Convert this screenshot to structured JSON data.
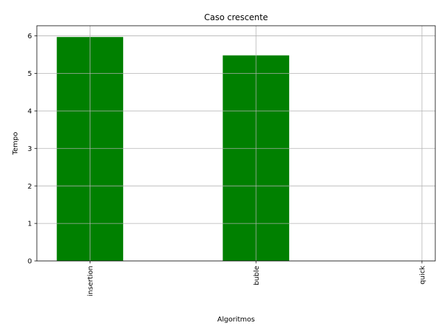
{
  "chart_data": {
    "type": "bar",
    "title": "Caso crescente",
    "xlabel": "Algoritmos",
    "ylabel": "Tempo",
    "categories": [
      "insertion",
      "buble",
      "quick"
    ],
    "values": [
      5.97,
      5.48,
      0.0
    ],
    "ylim": [
      0,
      6.27
    ],
    "yticks": [
      0,
      1,
      2,
      3,
      4,
      5,
      6
    ],
    "bar_color": "#008000",
    "grid": true,
    "x_tick_rotation": "vertical"
  }
}
